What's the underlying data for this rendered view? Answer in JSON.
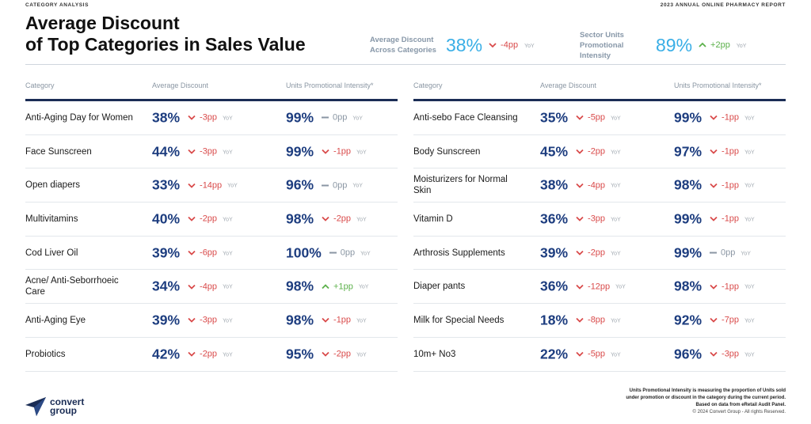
{
  "header": {
    "section_label": "CATEGORY ANALYSIS",
    "report_label": "2023 ANNUAL ONLINE PHARMACY REPORT",
    "title_line1": "Average Discount",
    "title_line2": "of Top Categories in Sales Value"
  },
  "kpis": [
    {
      "label_line1": "Average Discount",
      "label_line2": "Across Categories",
      "value": "38%",
      "change": "-4pp",
      "trend": "down",
      "yoy": "YoY"
    },
    {
      "label_line1": "Sector Units",
      "label_line2": "Promotional Intensity",
      "value": "89%",
      "change": "+2pp",
      "trend": "up",
      "yoy": "YoY"
    }
  ],
  "columns": {
    "category": "Category",
    "avg_discount": "Average Discount",
    "intensity": "Units Promotional Intensity*"
  },
  "left_rows": [
    {
      "category": "Anti-Aging Day for Women",
      "discount": "38%",
      "d_change": "-3pp",
      "d_trend": "down",
      "intensity": "99%",
      "i_change": "0pp",
      "i_trend": "flat",
      "yoy": "YoY"
    },
    {
      "category": "Face Sunscreen",
      "discount": "44%",
      "d_change": "-3pp",
      "d_trend": "down",
      "intensity": "99%",
      "i_change": "-1pp",
      "i_trend": "down",
      "yoy": "YoY"
    },
    {
      "category": "Open diapers",
      "discount": "33%",
      "d_change": "-14pp",
      "d_trend": "down",
      "intensity": "96%",
      "i_change": "0pp",
      "i_trend": "flat",
      "yoy": "YoY"
    },
    {
      "category": "Multivitamins",
      "discount": "40%",
      "d_change": "-2pp",
      "d_trend": "down",
      "intensity": "98%",
      "i_change": "-2pp",
      "i_trend": "down",
      "yoy": "YoY"
    },
    {
      "category": "Cod Liver Oil",
      "discount": "39%",
      "d_change": "-6pp",
      "d_trend": "down",
      "intensity": "100%",
      "i_change": "0pp",
      "i_trend": "flat",
      "yoy": "YoY"
    },
    {
      "category": "Acne/ Anti-Seborrhoeic Care",
      "discount": "34%",
      "d_change": "-4pp",
      "d_trend": "down",
      "intensity": "98%",
      "i_change": "+1pp",
      "i_trend": "up",
      "yoy": "YoY"
    },
    {
      "category": "Anti-Aging Eye",
      "discount": "39%",
      "d_change": "-3pp",
      "d_trend": "down",
      "intensity": "98%",
      "i_change": "-1pp",
      "i_trend": "down",
      "yoy": "YoY"
    },
    {
      "category": "Probiotics",
      "discount": "42%",
      "d_change": "-2pp",
      "d_trend": "down",
      "intensity": "95%",
      "i_change": "-2pp",
      "i_trend": "down",
      "yoy": "YoY"
    }
  ],
  "right_rows": [
    {
      "category": "Anti-sebo Face Cleansing",
      "discount": "35%",
      "d_change": "-5pp",
      "d_trend": "down",
      "intensity": "99%",
      "i_change": "-1pp",
      "i_trend": "down",
      "yoy": "YoY"
    },
    {
      "category": "Body Sunscreen",
      "discount": "45%",
      "d_change": "-2pp",
      "d_trend": "down",
      "intensity": "97%",
      "i_change": "-1pp",
      "i_trend": "down",
      "yoy": "YoY"
    },
    {
      "category": "Moisturizers for Normal Skin",
      "discount": "38%",
      "d_change": "-4pp",
      "d_trend": "down",
      "intensity": "98%",
      "i_change": "-1pp",
      "i_trend": "down",
      "yoy": "YoY"
    },
    {
      "category": "Vitamin D",
      "discount": "36%",
      "d_change": "-3pp",
      "d_trend": "down",
      "intensity": "99%",
      "i_change": "-1pp",
      "i_trend": "down",
      "yoy": "YoY"
    },
    {
      "category": "Arthrosis Supplements",
      "discount": "39%",
      "d_change": "-2pp",
      "d_trend": "down",
      "intensity": "99%",
      "i_change": "0pp",
      "i_trend": "flat",
      "yoy": "YoY"
    },
    {
      "category": "Diaper pants",
      "discount": "36%",
      "d_change": "-12pp",
      "d_trend": "down",
      "intensity": "98%",
      "i_change": "-1pp",
      "i_trend": "down",
      "yoy": "YoY"
    },
    {
      "category": "Milk for Special Needs",
      "discount": "18%",
      "d_change": "-8pp",
      "d_trend": "down",
      "intensity": "92%",
      "i_change": "-7pp",
      "i_trend": "down",
      "yoy": "YoY"
    },
    {
      "category": "10m+ No3",
      "discount": "22%",
      "d_change": "-5pp",
      "d_trend": "down",
      "intensity": "96%",
      "i_change": "-3pp",
      "i_trend": "down",
      "yoy": "YoY"
    }
  ],
  "footer": {
    "note_line1": "Units Promotional Intensity is measuring the proportion of Units sold",
    "note_line2": "under promotion or discount in the category during the current period.",
    "note_line3": "Based on data from eRetail Audit Panel.",
    "copyright": "© 2024 Convert Group - All rights Reserved."
  },
  "logo": {
    "line1": "convert",
    "line2": "group"
  },
  "colors": {
    "accent_blue": "#39aee6",
    "navy": "#1d3d7f",
    "negative": "#d94a4a",
    "positive": "#5bb04a",
    "neutral": "#8a96a3"
  }
}
